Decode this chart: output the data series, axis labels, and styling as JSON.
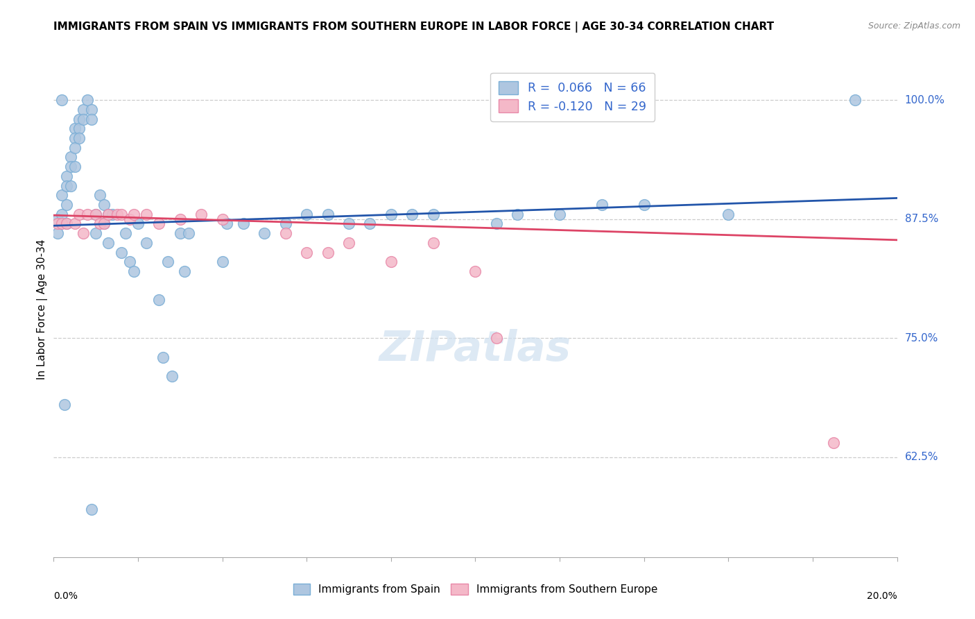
{
  "title": "IMMIGRANTS FROM SPAIN VS IMMIGRANTS FROM SOUTHERN EUROPE IN LABOR FORCE | AGE 30-34 CORRELATION CHART",
  "source": "Source: ZipAtlas.com",
  "ylabel": "In Labor Force | Age 30-34",
  "ytick_labels": [
    "62.5%",
    "75.0%",
    "87.5%",
    "100.0%"
  ],
  "ytick_values": [
    0.625,
    0.75,
    0.875,
    1.0
  ],
  "xmin": 0.0,
  "xmax": 0.2,
  "ymin": 0.52,
  "ymax": 1.04,
  "blue_R": 0.066,
  "blue_N": 66,
  "pink_R": -0.12,
  "pink_N": 29,
  "blue_color": "#aec6e0",
  "blue_edge": "#7aaed6",
  "blue_line_color": "#2255aa",
  "pink_color": "#f4b8c8",
  "pink_edge": "#e888a8",
  "pink_line_color": "#dd4466",
  "watermark_color": "#cfe0f0",
  "blue_scatter_x": [
    0.001,
    0.001,
    0.002,
    0.002,
    0.003,
    0.003,
    0.003,
    0.003,
    0.004,
    0.004,
    0.004,
    0.005,
    0.005,
    0.005,
    0.005,
    0.006,
    0.006,
    0.006,
    0.007,
    0.007,
    0.008,
    0.009,
    0.009,
    0.01,
    0.01,
    0.011,
    0.012,
    0.012,
    0.013,
    0.013,
    0.014,
    0.016,
    0.017,
    0.018,
    0.019,
    0.02,
    0.022,
    0.025,
    0.026,
    0.027,
    0.028,
    0.03,
    0.031,
    0.032,
    0.04,
    0.041,
    0.045,
    0.05,
    0.055,
    0.06,
    0.065,
    0.07,
    0.075,
    0.08,
    0.085,
    0.09,
    0.105,
    0.11,
    0.12,
    0.13,
    0.14,
    0.16,
    0.19,
    0.0025,
    0.009,
    0.002
  ],
  "blue_scatter_y": [
    0.875,
    0.86,
    0.9,
    0.88,
    0.92,
    0.91,
    0.89,
    0.87,
    0.94,
    0.93,
    0.91,
    0.97,
    0.96,
    0.95,
    0.93,
    0.98,
    0.97,
    0.96,
    0.99,
    0.98,
    1.0,
    0.99,
    0.98,
    0.88,
    0.86,
    0.9,
    0.89,
    0.87,
    0.88,
    0.85,
    0.88,
    0.84,
    0.86,
    0.83,
    0.82,
    0.87,
    0.85,
    0.79,
    0.73,
    0.83,
    0.71,
    0.86,
    0.82,
    0.86,
    0.83,
    0.87,
    0.87,
    0.86,
    0.87,
    0.88,
    0.88,
    0.87,
    0.87,
    0.88,
    0.88,
    0.88,
    0.87,
    0.88,
    0.88,
    0.89,
    0.89,
    0.88,
    1.0,
    0.68,
    0.57,
    1.0
  ],
  "pink_scatter_x": [
    0.001,
    0.002,
    0.003,
    0.005,
    0.006,
    0.007,
    0.008,
    0.01,
    0.011,
    0.012,
    0.013,
    0.015,
    0.016,
    0.018,
    0.019,
    0.022,
    0.025,
    0.03,
    0.035,
    0.04,
    0.055,
    0.06,
    0.065,
    0.07,
    0.08,
    0.09,
    0.1,
    0.105,
    0.185
  ],
  "pink_scatter_y": [
    0.87,
    0.87,
    0.87,
    0.87,
    0.88,
    0.86,
    0.88,
    0.88,
    0.87,
    0.87,
    0.88,
    0.88,
    0.88,
    0.875,
    0.88,
    0.88,
    0.87,
    0.875,
    0.88,
    0.875,
    0.86,
    0.84,
    0.84,
    0.85,
    0.83,
    0.85,
    0.82,
    0.75,
    0.64
  ],
  "blue_trend_x": [
    0.0,
    0.2
  ],
  "blue_trend_y": [
    0.868,
    0.897
  ],
  "pink_trend_x": [
    0.0,
    0.2
  ],
  "pink_trend_y": [
    0.879,
    0.853
  ]
}
